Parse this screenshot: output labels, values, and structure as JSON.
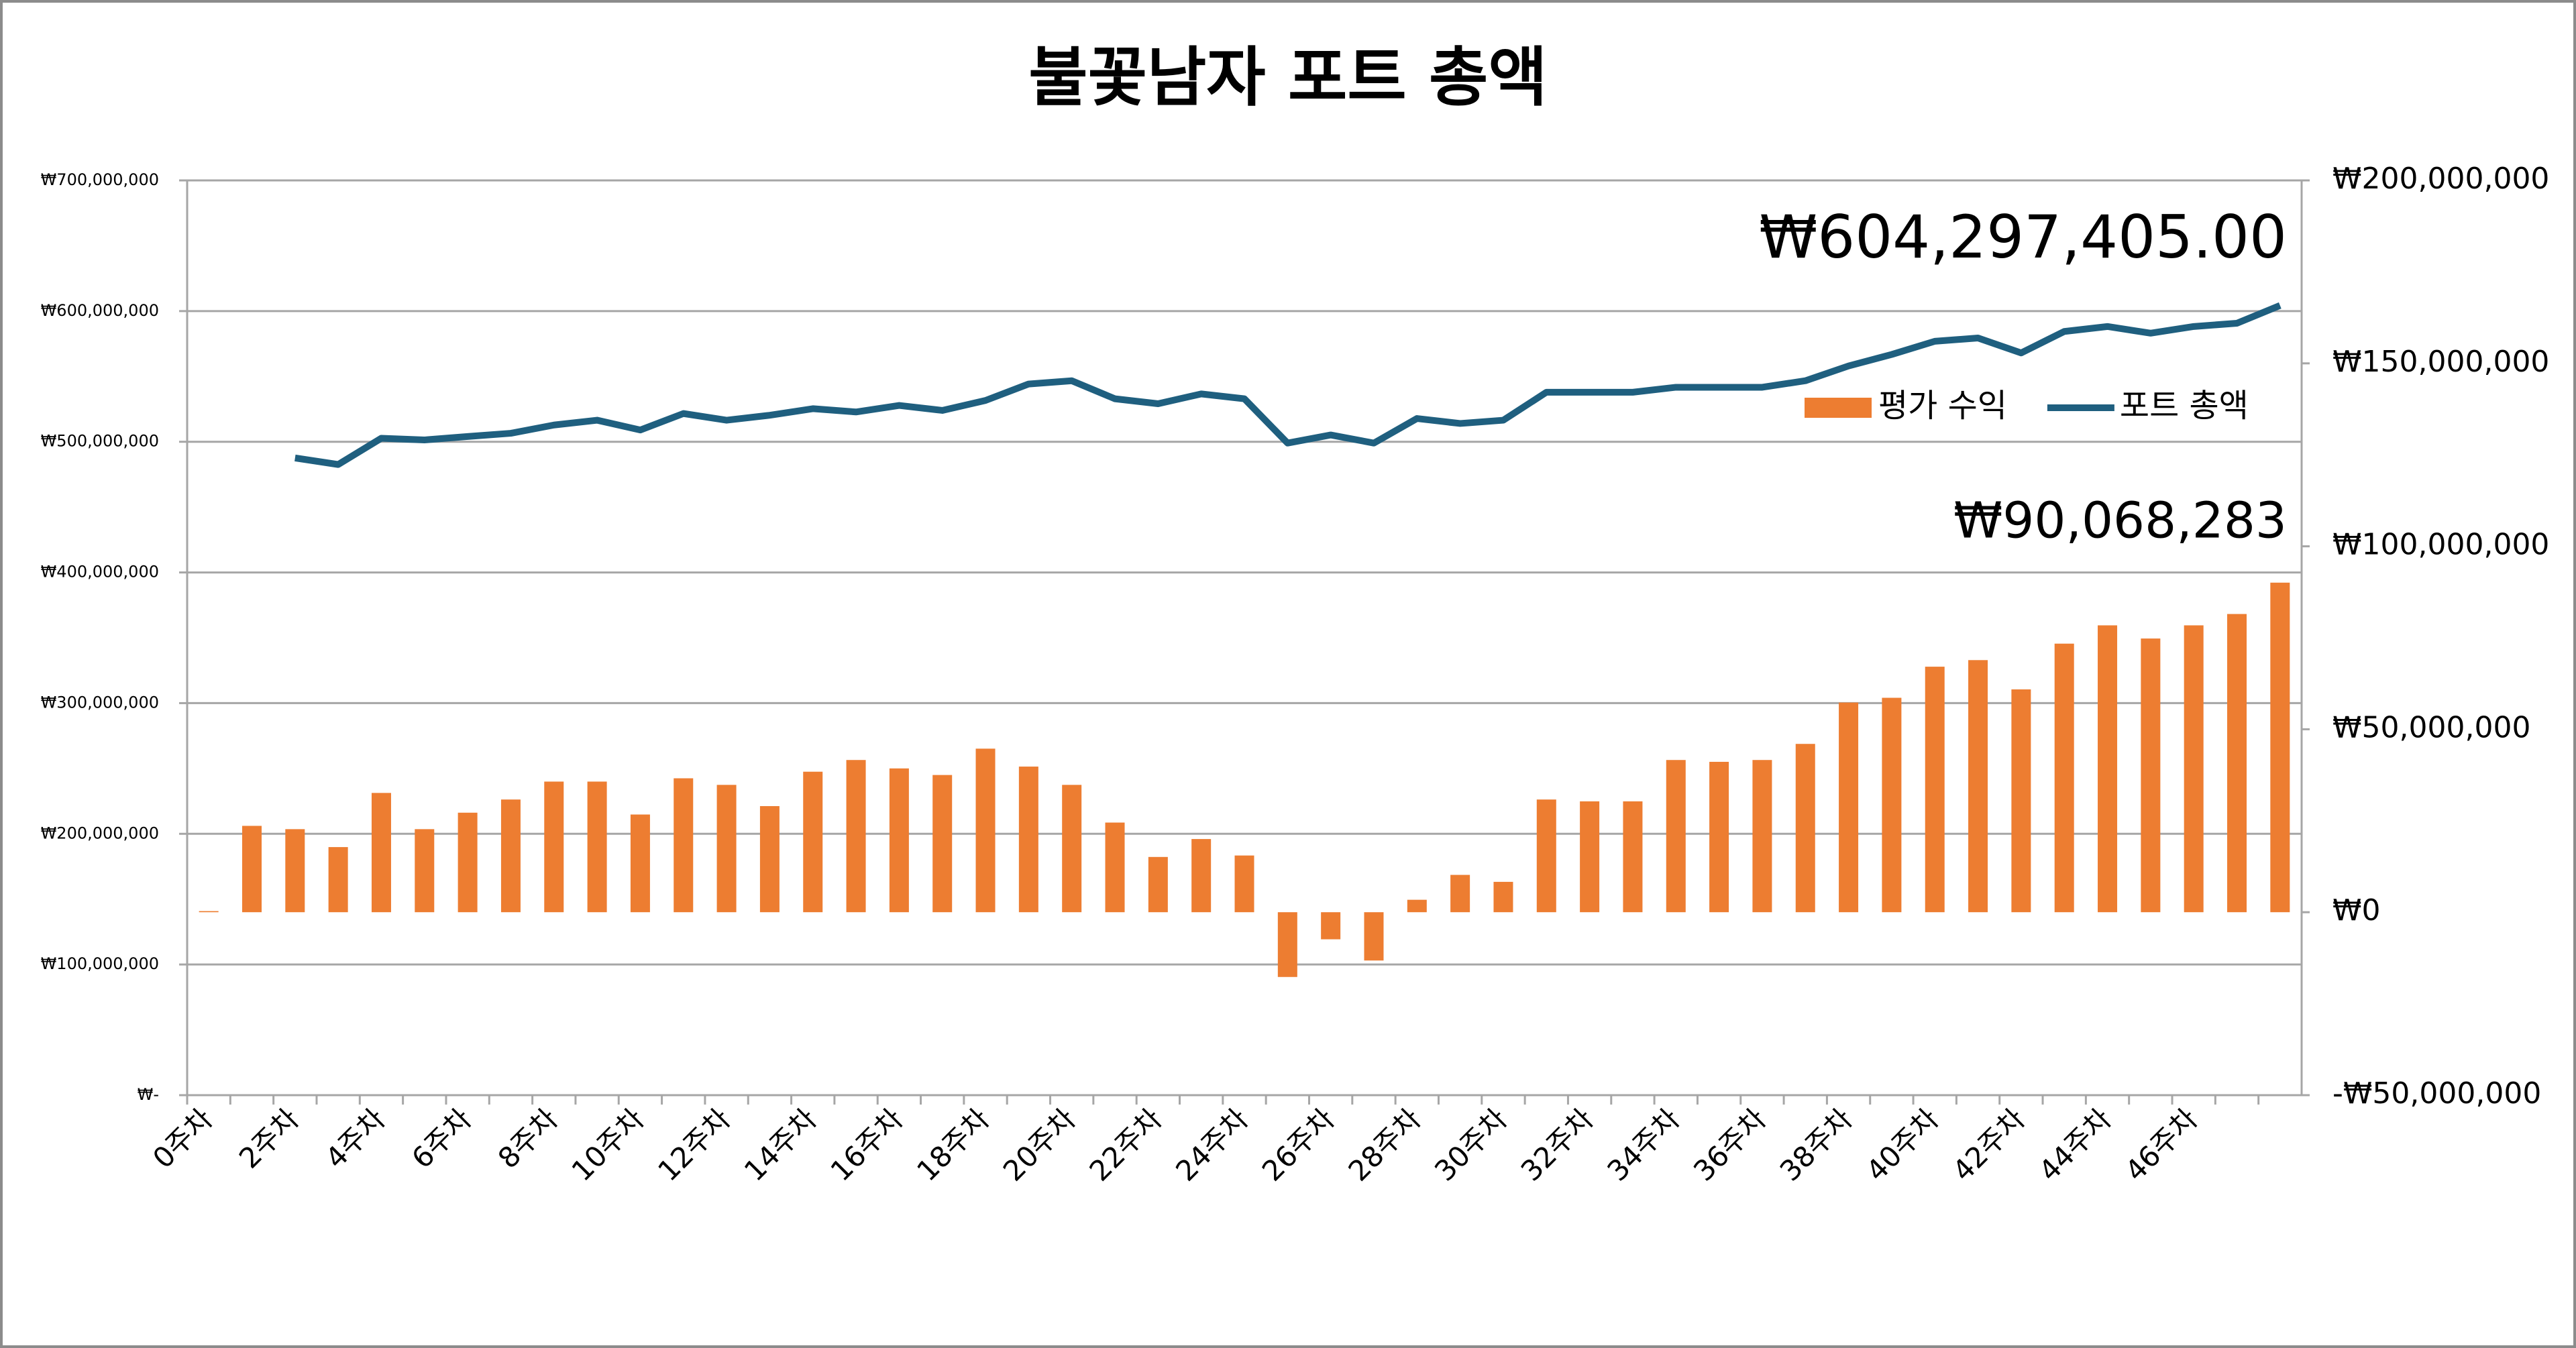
{
  "chart_data": {
    "type": "bar-line",
    "title": "불꽃남자 포트 총액",
    "categories": [
      "0주차",
      null,
      "2주차",
      null,
      "4주차",
      null,
      "6주차",
      null,
      "8주차",
      null,
      "10주차",
      null,
      "12주차",
      null,
      "14주차",
      null,
      "16주차",
      null,
      "18주차",
      null,
      "20주차",
      null,
      "22주차",
      null,
      "24주차",
      null,
      "26주차",
      null,
      "28주차",
      null,
      "30주차",
      null,
      "32주차",
      null,
      "34주차",
      null,
      "36주차",
      null,
      "38주차",
      null,
      "40주차",
      null,
      "42주차",
      null,
      "44주차",
      null,
      "46주차",
      null,
      null
    ],
    "series": [
      {
        "name": "평가 수익",
        "type": "bar",
        "axis": "y2",
        "color": "#ed7d31",
        "values": [
          300000,
          23600000,
          22700000,
          17800000,
          32600000,
          22700000,
          27200000,
          30800000,
          35700000,
          35700000,
          26700000,
          36600000,
          34800000,
          29000000,
          38400000,
          41600000,
          39300000,
          37500000,
          44700000,
          39800000,
          34800000,
          24500000,
          15100000,
          20000000,
          15500000,
          -17700000,
          -7400000,
          -13200000,
          3400000,
          10200000,
          8300000,
          30800000,
          30300000,
          30300000,
          41600000,
          41100000,
          41600000,
          46000000,
          57300000,
          58600000,
          67100000,
          68900000,
          60900000,
          73400000,
          78400000,
          74800000,
          78400000,
          81500000,
          90068283
        ],
        "value_labels": [
          null,
          null,
          null,
          null,
          null,
          null,
          null,
          null,
          null,
          null,
          null,
          null,
          null,
          null,
          null,
          null,
          null,
          null,
          null,
          null,
          null,
          null,
          null,
          null,
          null,
          null,
          null,
          null,
          null,
          null,
          null,
          null,
          null,
          null,
          null,
          null,
          null,
          null,
          null,
          null,
          null,
          null,
          null,
          null,
          null,
          null,
          null,
          null,
          "₩90,068,283"
        ]
      },
      {
        "name": "포트 총액",
        "type": "line",
        "axis": "y",
        "color": "#1f5f7f",
        "values": [
          null,
          null,
          487600000,
          482600000,
          502700000,
          501400000,
          504000000,
          506500000,
          512800000,
          516500000,
          509000000,
          521600000,
          516500000,
          520300000,
          525300000,
          522800000,
          527800000,
          524000000,
          531600000,
          544200000,
          546700000,
          532900000,
          529100000,
          536600000,
          532900000,
          499000000,
          505200000,
          499000000,
          517800000,
          514000000,
          516500000,
          537900000,
          537900000,
          537900000,
          541700000,
          541700000,
          541700000,
          546700000,
          558000000,
          566800000,
          576900000,
          579400000,
          568000000,
          584400000,
          588200000,
          583100000,
          588200000,
          590700000,
          604297405
        ],
        "value_labels": [
          null,
          null,
          null,
          null,
          null,
          null,
          null,
          null,
          null,
          null,
          null,
          null,
          null,
          null,
          null,
          null,
          null,
          null,
          null,
          null,
          null,
          null,
          null,
          null,
          null,
          null,
          null,
          null,
          null,
          null,
          null,
          null,
          null,
          null,
          null,
          null,
          null,
          null,
          null,
          null,
          null,
          null,
          null,
          null,
          null,
          null,
          null,
          null,
          "₩604,297,405.00"
        ]
      }
    ],
    "ylim": [
      0,
      700000000
    ],
    "yticks": [
      {
        "value": 0,
        "label": "₩-"
      },
      {
        "value": 100000000,
        "label": "₩100,000,000"
      },
      {
        "value": 200000000,
        "label": "₩200,000,000"
      },
      {
        "value": 300000000,
        "label": "₩300,000,000"
      },
      {
        "value": 400000000,
        "label": "₩400,000,000"
      },
      {
        "value": 500000000,
        "label": "₩500,000,000"
      },
      {
        "value": 600000000,
        "label": "₩600,000,000"
      },
      {
        "value": 700000000,
        "label": "₩700,000,000"
      }
    ],
    "y2lim": [
      -50000000,
      200000000
    ],
    "y2ticks": [
      {
        "value": -50000000,
        "label": "-₩50,000,000"
      },
      {
        "value": 0,
        "label": "₩0"
      },
      {
        "value": 50000000,
        "label": "₩50,000,000"
      },
      {
        "value": 100000000,
        "label": "₩100,000,000"
      },
      {
        "value": 150000000,
        "label": "₩150,000,000"
      },
      {
        "value": 200000000,
        "label": "₩200,000,000"
      }
    ],
    "grid": true,
    "legend": "upper right"
  }
}
